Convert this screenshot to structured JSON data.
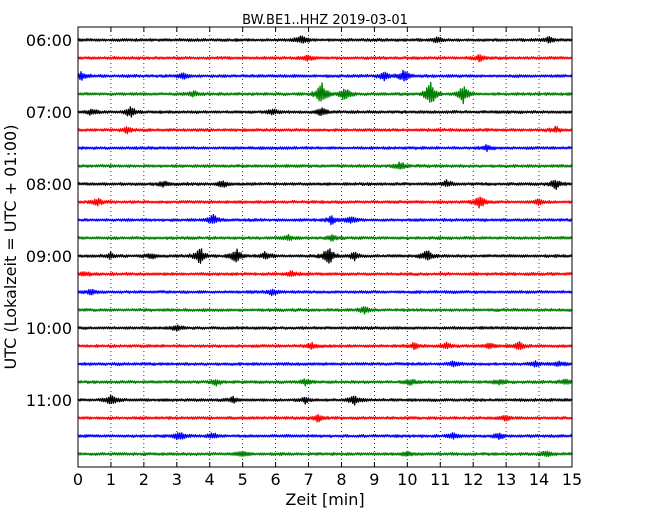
{
  "chart_data": {
    "type": "line",
    "subtype": "helicorder-seismogram",
    "title": "BW.BE1..HHZ 2019-03-01",
    "xlabel": "Zeit  [min]",
    "ylabel": "UTC (Lokalzeit = UTC + 01:00)",
    "xlim": [
      0,
      15
    ],
    "x_ticks": [
      "0",
      "1",
      "2",
      "3",
      "4",
      "5",
      "6",
      "7",
      "8",
      "9",
      "10",
      "11",
      "12",
      "13",
      "14",
      "15"
    ],
    "y_ticks": [
      "06:00",
      "07:00",
      "08:00",
      "09:00",
      "10:00",
      "11:00"
    ],
    "grid": "vertical dotted at each minute",
    "trace_minutes": 15,
    "trace_colors": [
      "#000000",
      "#ff0000",
      "#0000ff",
      "#008000"
    ],
    "traces": [
      {
        "start": "06:00",
        "events": [
          [
            6.8,
            5
          ],
          [
            10.9,
            3
          ],
          [
            14.3,
            3
          ]
        ]
      },
      {
        "start": "06:15",
        "events": [
          [
            7.0,
            3
          ],
          [
            12.2,
            3
          ]
        ]
      },
      {
        "start": "06:30",
        "events": [
          [
            0.1,
            5
          ],
          [
            3.2,
            3
          ],
          [
            9.3,
            4
          ],
          [
            9.9,
            7
          ]
        ]
      },
      {
        "start": "06:45",
        "events": [
          [
            7.4,
            13
          ],
          [
            8.1,
            8
          ],
          [
            10.7,
            14
          ],
          [
            11.7,
            10
          ],
          [
            3.5,
            3
          ]
        ]
      },
      {
        "start": "07:00",
        "events": [
          [
            1.6,
            6
          ],
          [
            5.9,
            3
          ],
          [
            7.4,
            4
          ],
          [
            0.4,
            3
          ]
        ]
      },
      {
        "start": "07:15",
        "events": [
          [
            1.5,
            3
          ],
          [
            14.5,
            3
          ]
        ]
      },
      {
        "start": "07:30",
        "events": [
          [
            12.4,
            3
          ]
        ]
      },
      {
        "start": "07:45",
        "events": [
          [
            9.8,
            4
          ]
        ]
      },
      {
        "start": "08:00",
        "events": [
          [
            2.6,
            3
          ],
          [
            4.4,
            4
          ],
          [
            11.2,
            3
          ],
          [
            14.5,
            5
          ]
        ]
      },
      {
        "start": "08:15",
        "events": [
          [
            0.6,
            4
          ],
          [
            12.2,
            7
          ],
          [
            14.0,
            3
          ]
        ]
      },
      {
        "start": "08:30",
        "events": [
          [
            4.1,
            5
          ],
          [
            7.7,
            4
          ],
          [
            8.3,
            4
          ]
        ]
      },
      {
        "start": "08:45",
        "events": [
          [
            6.4,
            3
          ],
          [
            7.7,
            3
          ]
        ]
      },
      {
        "start": "09:00",
        "events": [
          [
            3.7,
            9
          ],
          [
            4.8,
            8
          ],
          [
            7.6,
            10
          ],
          [
            10.6,
            6
          ],
          [
            1.0,
            3
          ],
          [
            2.2,
            3
          ],
          [
            5.7,
            4
          ],
          [
            8.4,
            4
          ]
        ]
      },
      {
        "start": "09:15",
        "events": [
          [
            0.2,
            3
          ],
          [
            6.5,
            3
          ]
        ]
      },
      {
        "start": "09:30",
        "events": [
          [
            0.4,
            3
          ],
          [
            5.9,
            3
          ]
        ]
      },
      {
        "start": "09:45",
        "events": [
          [
            8.7,
            3
          ]
        ]
      },
      {
        "start": "10:00",
        "events": [
          [
            3.0,
            3
          ]
        ]
      },
      {
        "start": "10:15",
        "events": [
          [
            7.1,
            3
          ],
          [
            10.2,
            3
          ],
          [
            11.2,
            3
          ],
          [
            12.5,
            3
          ],
          [
            13.4,
            4
          ]
        ]
      },
      {
        "start": "10:30",
        "events": [
          [
            14.6,
            3
          ],
          [
            11.4,
            3
          ],
          [
            13.9,
            3
          ]
        ]
      },
      {
        "start": "10:45",
        "events": [
          [
            4.2,
            3
          ],
          [
            6.9,
            3
          ],
          [
            10.1,
            3
          ],
          [
            12.8,
            3
          ],
          [
            14.8,
            3
          ]
        ]
      },
      {
        "start": "11:00",
        "events": [
          [
            1.0,
            6
          ],
          [
            6.9,
            3
          ],
          [
            8.4,
            5
          ],
          [
            4.7,
            3
          ]
        ]
      },
      {
        "start": "11:15",
        "events": [
          [
            7.3,
            4
          ],
          [
            13.0,
            3
          ]
        ]
      },
      {
        "start": "11:30",
        "events": [
          [
            3.1,
            5
          ],
          [
            4.1,
            3
          ],
          [
            11.4,
            3
          ],
          [
            12.8,
            3
          ]
        ]
      },
      {
        "start": "11:45",
        "events": [
          [
            5.0,
            3
          ],
          [
            10.0,
            3
          ],
          [
            14.2,
            3
          ]
        ]
      }
    ]
  }
}
